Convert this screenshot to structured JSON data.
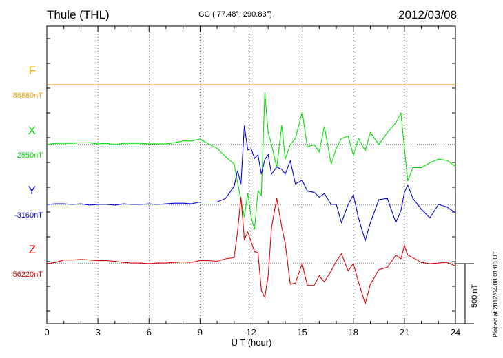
{
  "header": {
    "station": "Thule (THL)",
    "coords": "GG ( 77.48°, 290.83°)",
    "date": "2012/03/08"
  },
  "plotted_note": "Plotted at 2012/04/08 01:00 UT",
  "scale_label": "500 nT",
  "chart_data": {
    "type": "line",
    "xlabel": "U T (hour)",
    "xlim": [
      0,
      24
    ],
    "xticks": [
      "0",
      "3",
      "6",
      "9",
      "12",
      "15",
      "18",
      "21",
      "24"
    ],
    "scale_bar_nT": 500,
    "grid": true,
    "series": [
      {
        "name": "F",
        "baseline_label": "88880nT",
        "color": "#f0a000",
        "x": [
          0,
          24
        ],
        "y": [
          0,
          0
        ]
      },
      {
        "name": "X",
        "baseline_label": "2550nT",
        "color": "#00e000",
        "x": [
          0,
          0.5,
          1,
          1.5,
          2,
          2.5,
          3,
          3.5,
          4,
          4.5,
          5,
          5.5,
          6,
          6.5,
          7,
          7.5,
          8,
          8.5,
          9,
          9.5,
          10,
          10.5,
          11,
          11.2,
          11.4,
          11.6,
          11.8,
          12,
          12.2,
          12.4,
          12.6,
          12.8,
          13,
          13.2,
          13.5,
          13.8,
          14,
          14.3,
          14.6,
          15,
          15.3,
          15.7,
          16,
          16.3,
          16.7,
          17,
          17.3,
          17.7,
          18,
          18.3,
          18.7,
          19,
          19.5,
          20,
          20.5,
          20.8,
          21,
          21.2,
          21.5,
          22,
          22.5,
          23,
          23.5,
          24
        ],
        "y": [
          0,
          10,
          10,
          10,
          15,
          15,
          5,
          10,
          0,
          10,
          10,
          10,
          5,
          5,
          5,
          15,
          30,
          30,
          45,
          5,
          -30,
          -100,
          -160,
          -310,
          -460,
          -600,
          -400,
          -600,
          -700,
          -380,
          -420,
          430,
          100,
          0,
          -190,
          160,
          -120,
          0,
          50,
          270,
          -20,
          0,
          -60,
          150,
          -160,
          -30,
          50,
          70,
          -90,
          50,
          -50,
          100,
          0,
          100,
          180,
          260,
          -30,
          -300,
          -190,
          -190,
          -150,
          -120,
          -130,
          -180
        ]
      },
      {
        "name": "Y",
        "baseline_label": "-3160nT",
        "color": "#0000e0",
        "x": [
          0,
          0.5,
          1,
          1.5,
          2,
          2.5,
          3,
          3.5,
          4,
          4.5,
          5,
          5.5,
          6,
          6.5,
          7,
          7.5,
          8,
          8.5,
          9,
          9.5,
          10,
          10.5,
          11,
          11.2,
          11.4,
          11.6,
          11.8,
          12,
          12.2,
          12.4,
          12.6,
          12.8,
          13,
          13.2,
          13.5,
          13.8,
          14,
          14.3,
          14.6,
          15,
          15.3,
          15.7,
          16,
          16.3,
          16.7,
          17,
          17.3,
          17.7,
          18,
          18.3,
          18.7,
          19,
          19.5,
          20,
          20.5,
          20.8,
          21,
          21.2,
          21.5,
          22,
          22.5,
          23,
          23.5,
          24
        ],
        "y": [
          0,
          5,
          5,
          0,
          5,
          -5,
          0,
          0,
          -5,
          5,
          0,
          0,
          5,
          0,
          5,
          10,
          10,
          5,
          20,
          20,
          20,
          50,
          150,
          280,
          170,
          650,
          450,
          460,
          380,
          410,
          250,
          370,
          410,
          250,
          310,
          290,
          250,
          360,
          170,
          200,
          110,
          100,
          60,
          90,
          0,
          0,
          -150,
          0,
          80,
          -110,
          -300,
          -150,
          40,
          50,
          -150,
          -50,
          100,
          160,
          50,
          -40,
          -110,
          0,
          -20,
          -70
        ]
      },
      {
        "name": "Z",
        "baseline_label": "56220nT",
        "color": "#e00000",
        "x": [
          0,
          0.5,
          1,
          1.5,
          2,
          2.5,
          3,
          3.5,
          4,
          4.5,
          5,
          5.5,
          6,
          6.5,
          7,
          7.5,
          8,
          8.5,
          9,
          9.5,
          10,
          10.5,
          11,
          11.2,
          11.4,
          11.6,
          11.8,
          12,
          12.2,
          12.4,
          12.6,
          12.8,
          13,
          13.2,
          13.5,
          13.8,
          14,
          14.3,
          14.6,
          15,
          15.3,
          15.7,
          16,
          16.3,
          16.7,
          17,
          17.3,
          17.7,
          18,
          18.3,
          18.7,
          19,
          19.5,
          20,
          20.5,
          20.8,
          21,
          21.2,
          21.5,
          22,
          22.5,
          23,
          23.5,
          24
        ],
        "y": [
          0,
          10,
          30,
          30,
          35,
          30,
          25,
          25,
          20,
          10,
          5,
          5,
          0,
          5,
          5,
          10,
          15,
          10,
          25,
          25,
          20,
          40,
          50,
          260,
          550,
          200,
          260,
          180,
          100,
          90,
          -220,
          -280,
          -100,
          300,
          540,
          300,
          170,
          -170,
          -160,
          0,
          -180,
          -180,
          -100,
          -150,
          -60,
          20,
          80,
          -60,
          0,
          -150,
          -330,
          -170,
          -50,
          -30,
          70,
          40,
          150,
          70,
          50,
          10,
          0,
          5,
          10,
          -20
        ]
      }
    ]
  }
}
